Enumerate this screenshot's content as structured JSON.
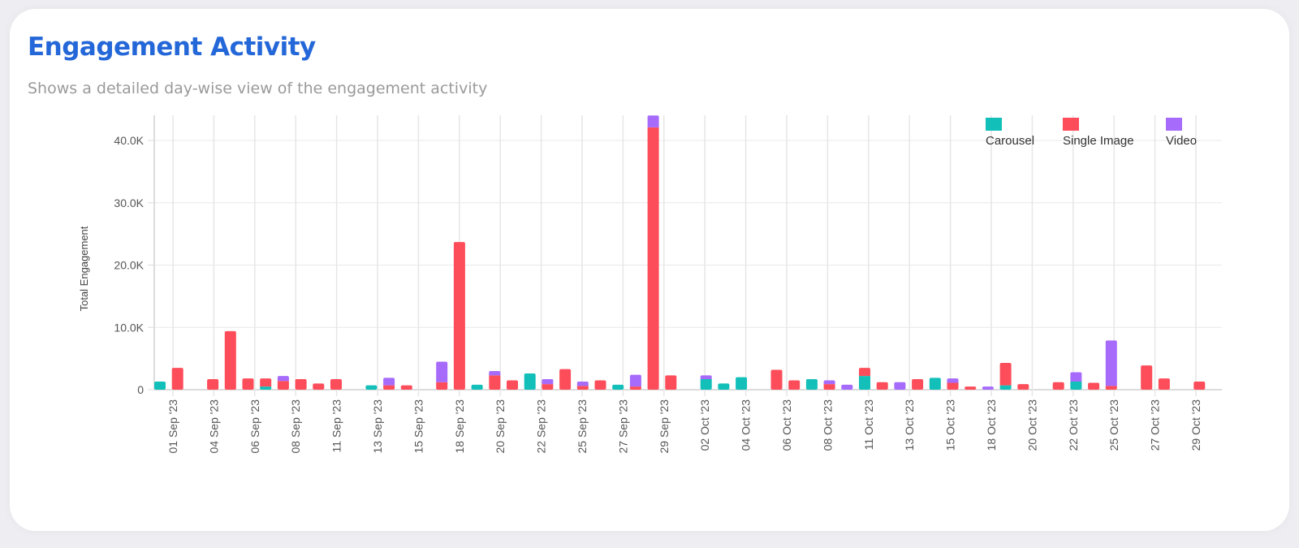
{
  "header": {
    "title": "Engagement Activity",
    "subtitle": "Shows a detailed day-wise view of the engagement activity"
  },
  "chart_data": {
    "type": "bar",
    "stacked": true,
    "ylabel": "Total Engagement",
    "xlabel": "",
    "ylim": [
      0,
      44000
    ],
    "yticks": [
      0,
      10000,
      20000,
      30000,
      40000
    ],
    "ytick_labels": [
      "0",
      "10.0K",
      "20.0K",
      "30.0K",
      "40.0K"
    ],
    "xtick_labels": [
      "01 Sep '23",
      "04 Sep '23",
      "06 Sep '23",
      "08 Sep '23",
      "11 Sep '23",
      "13 Sep '23",
      "15 Sep '23",
      "18 Sep '23",
      "20 Sep '23",
      "22 Sep '23",
      "25 Sep '23",
      "27 Sep '23",
      "29 Sep '23",
      "02 Oct '23",
      "04 Oct '23",
      "06 Oct '23",
      "08 Oct '23",
      "11 Oct '23",
      "13 Oct '23",
      "15 Oct '23",
      "18 Oct '23",
      "20 Oct '23",
      "22 Oct '23",
      "25 Oct '23",
      "27 Oct '23",
      "29 Oct '23"
    ],
    "grid": true,
    "legend_position": "top-right",
    "series": [
      {
        "name": "Carousel",
        "color": "#12bfb9"
      },
      {
        "name": "Single Image",
        "color": "#fd4d5a"
      },
      {
        "name": "Video",
        "color": "#a66bfb"
      }
    ],
    "x": [
      "2023-09-01",
      "2023-09-02",
      "2023-09-04",
      "2023-09-05",
      "2023-09-06",
      "2023-09-07",
      "2023-09-08",
      "2023-09-09",
      "2023-09-10",
      "2023-09-11",
      "2023-09-13",
      "2023-09-14",
      "2023-09-15",
      "2023-09-17",
      "2023-09-18",
      "2023-09-19",
      "2023-09-20",
      "2023-09-21",
      "2023-09-22",
      "2023-09-23",
      "2023-09-24",
      "2023-09-25",
      "2023-09-26",
      "2023-09-27",
      "2023-09-28",
      "2023-09-29",
      "2023-09-30",
      "2023-10-02",
      "2023-10-03",
      "2023-10-04",
      "2023-10-06",
      "2023-10-07",
      "2023-10-08",
      "2023-10-09",
      "2023-10-10",
      "2023-10-11",
      "2023-10-12",
      "2023-10-13",
      "2023-10-14",
      "2023-10-15",
      "2023-10-16",
      "2023-10-17",
      "2023-10-18",
      "2023-10-19",
      "2023-10-20",
      "2023-10-22",
      "2023-10-23",
      "2023-10-24",
      "2023-10-25",
      "2023-10-27",
      "2023-10-28",
      "2023-10-30"
    ],
    "values": {
      "Carousel": [
        1300,
        0,
        0,
        0,
        0,
        500,
        0,
        0,
        0,
        0,
        700,
        0,
        0,
        0,
        0,
        800,
        0,
        0,
        2600,
        0,
        0,
        0,
        0,
        800,
        0,
        0,
        0,
        1700,
        1000,
        2000,
        0,
        0,
        1700,
        0,
        0,
        2200,
        0,
        0,
        0,
        1900,
        0,
        0,
        0,
        700,
        0,
        0,
        1300,
        0,
        0,
        0,
        0,
        0
      ],
      "Single Image": [
        0,
        3500,
        1700,
        9400,
        1800,
        1300,
        1400,
        1700,
        1000,
        1700,
        0,
        700,
        700,
        1200,
        23700,
        0,
        2300,
        1500,
        0,
        900,
        3300,
        600,
        1500,
        0,
        500,
        42100,
        2300,
        0,
        0,
        0,
        3200,
        1500,
        0,
        900,
        0,
        1300,
        1200,
        0,
        1700,
        0,
        1100,
        500,
        0,
        3600,
        900,
        1200,
        0,
        1100,
        600,
        3900,
        1800,
        1300
      ],
      "Video": [
        0,
        0,
        0,
        0,
        0,
        0,
        800,
        0,
        0,
        0,
        0,
        1200,
        0,
        3300,
        0,
        0,
        700,
        0,
        0,
        800,
        0,
        700,
        0,
        0,
        1900,
        1900,
        0,
        600,
        0,
        0,
        0,
        0,
        0,
        600,
        800,
        0,
        0,
        1200,
        0,
        0,
        700,
        0,
        500,
        0,
        0,
        0,
        1500,
        0,
        7300,
        0,
        0,
        0
      ]
    }
  }
}
